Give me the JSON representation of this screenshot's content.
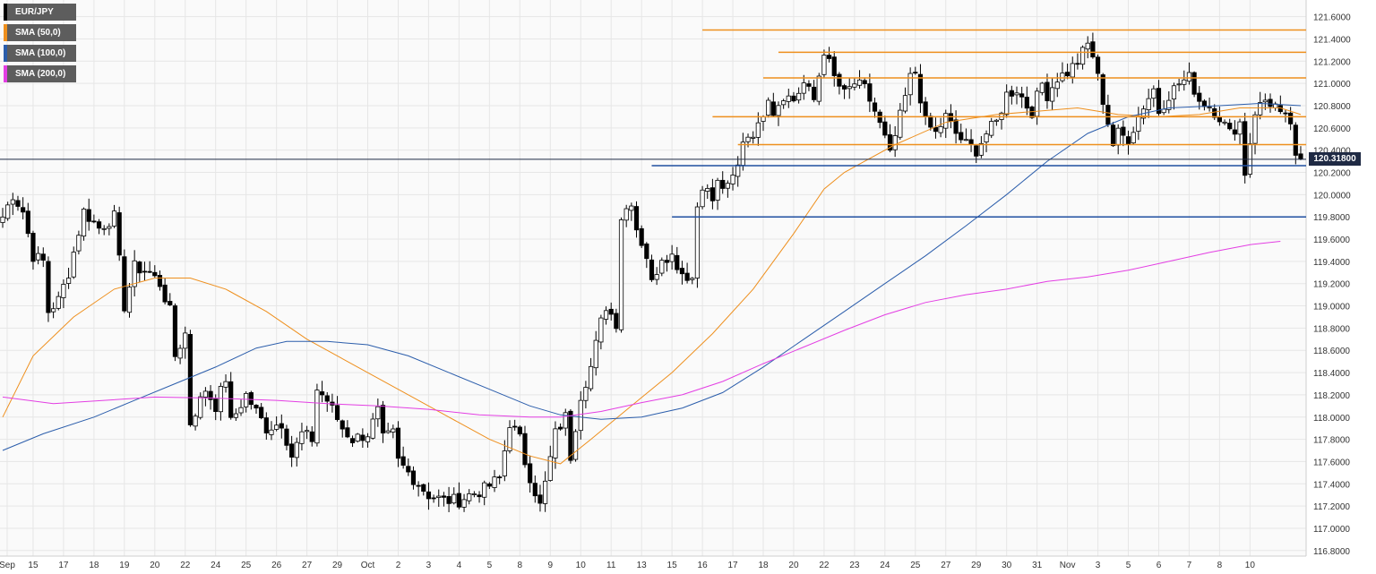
{
  "chart_data": {
    "type": "candlestick",
    "symbol": "EUR/JPY",
    "ylim": [
      116.75,
      121.75
    ],
    "y_ticks": [
      "121.6000",
      "121.4000",
      "121.2000",
      "121.0000",
      "120.8000",
      "120.6000",
      "120.4000",
      "120.2000",
      "120.0000",
      "119.8000",
      "119.6000",
      "119.4000",
      "119.2000",
      "119.0000",
      "118.8000",
      "118.6000",
      "118.4000",
      "118.2000",
      "118.0000",
      "117.8000",
      "117.6000",
      "117.4000",
      "117.2000",
      "117.0000",
      "116.8000"
    ],
    "x_ticks": [
      {
        "label": "Sep",
        "i": 0
      },
      {
        "label": "15",
        "i": 6
      },
      {
        "label": "17",
        "i": 12
      },
      {
        "label": "18",
        "i": 18
      },
      {
        "label": "19",
        "i": 24
      },
      {
        "label": "20",
        "i": 30
      },
      {
        "label": "22",
        "i": 36
      },
      {
        "label": "24",
        "i": 42
      },
      {
        "label": "25",
        "i": 48
      },
      {
        "label": "26",
        "i": 54
      },
      {
        "label": "27",
        "i": 60
      },
      {
        "label": "29",
        "i": 66
      },
      {
        "label": "Oct",
        "i": 72
      },
      {
        "label": "2",
        "i": 78
      },
      {
        "label": "3",
        "i": 84
      },
      {
        "label": "4",
        "i": 90
      },
      {
        "label": "5",
        "i": 96
      },
      {
        "label": "8",
        "i": 102
      },
      {
        "label": "9",
        "i": 108
      },
      {
        "label": "10",
        "i": 114
      },
      {
        "label": "11",
        "i": 120
      },
      {
        "label": "13",
        "i": 126
      },
      {
        "label": "15",
        "i": 132
      },
      {
        "label": "16",
        "i": 138
      },
      {
        "label": "17",
        "i": 144
      },
      {
        "label": "18",
        "i": 150
      },
      {
        "label": "20",
        "i": 156
      },
      {
        "label": "22",
        "i": 162
      },
      {
        "label": "23",
        "i": 168
      },
      {
        "label": "24",
        "i": 174
      },
      {
        "label": "25",
        "i": 180
      },
      {
        "label": "27",
        "i": 186
      },
      {
        "label": "29",
        "i": 192
      },
      {
        "label": "30",
        "i": 198
      },
      {
        "label": "31",
        "i": 204
      },
      {
        "label": "Nov",
        "i": 210
      },
      {
        "label": "3",
        "i": 216
      },
      {
        "label": "5",
        "i": 222
      },
      {
        "label": "6",
        "i": 228
      },
      {
        "label": "7",
        "i": 234
      },
      {
        "label": "8",
        "i": 240
      },
      {
        "label": "10",
        "i": 246
      }
    ],
    "anchors": [
      [
        0,
        119.8
      ],
      [
        2,
        120.0
      ],
      [
        4,
        119.85
      ],
      [
        6,
        119.45
      ],
      [
        8,
        119.4
      ],
      [
        9,
        118.95
      ],
      [
        11,
        119.05
      ],
      [
        13,
        119.3
      ],
      [
        16,
        119.85
      ],
      [
        19,
        119.7
      ],
      [
        22,
        119.8
      ],
      [
        24,
        119.0
      ],
      [
        26,
        119.35
      ],
      [
        29,
        119.3
      ],
      [
        31,
        119.2
      ],
      [
        33,
        118.95
      ],
      [
        34,
        118.55
      ],
      [
        36,
        118.75
      ],
      [
        37,
        117.95
      ],
      [
        38,
        118.05
      ],
      [
        40,
        118.25
      ],
      [
        42,
        118.1
      ],
      [
        44,
        118.35
      ],
      [
        45,
        117.95
      ],
      [
        48,
        118.2
      ],
      [
        52,
        117.9
      ],
      [
        55,
        117.95
      ],
      [
        57,
        117.65
      ],
      [
        59,
        117.85
      ],
      [
        61,
        117.8
      ],
      [
        62,
        118.25
      ],
      [
        64,
        118.15
      ],
      [
        67,
        117.9
      ],
      [
        69,
        117.8
      ],
      [
        72,
        117.85
      ],
      [
        74,
        118.05
      ],
      [
        75,
        117.8
      ],
      [
        77,
        117.85
      ],
      [
        78,
        117.6
      ],
      [
        81,
        117.45
      ],
      [
        84,
        117.3
      ],
      [
        87,
        117.25
      ],
      [
        90,
        117.25
      ],
      [
        92,
        117.3
      ],
      [
        95,
        117.35
      ],
      [
        98,
        117.45
      ],
      [
        100,
        117.95
      ],
      [
        102,
        117.8
      ],
      [
        103,
        117.6
      ],
      [
        106,
        117.2
      ],
      [
        107,
        117.4
      ],
      [
        109,
        117.85
      ],
      [
        111,
        118.0
      ],
      [
        112,
        117.65
      ],
      [
        114,
        118.2
      ],
      [
        116,
        118.45
      ],
      [
        118,
        118.85
      ],
      [
        119,
        119.0
      ],
      [
        121,
        118.85
      ],
      [
        122,
        119.8
      ],
      [
        124,
        119.95
      ],
      [
        125,
        119.7
      ],
      [
        127,
        119.45
      ],
      [
        128,
        119.2
      ],
      [
        130,
        119.45
      ],
      [
        132,
        119.45
      ],
      [
        134,
        119.3
      ],
      [
        136,
        119.25
      ],
      [
        137,
        119.9
      ],
      [
        138,
        120.1
      ],
      [
        140,
        119.95
      ],
      [
        141,
        120.1
      ],
      [
        143,
        120.05
      ],
      [
        145,
        120.25
      ],
      [
        146,
        120.5
      ],
      [
        149,
        120.6
      ],
      [
        151,
        120.9
      ],
      [
        152,
        120.75
      ],
      [
        154,
        120.9
      ],
      [
        156,
        120.85
      ],
      [
        158,
        121.0
      ],
      [
        160,
        120.85
      ],
      [
        162,
        121.3
      ],
      [
        164,
        121.05
      ],
      [
        166,
        120.9
      ],
      [
        168,
        121.0
      ],
      [
        170,
        120.95
      ],
      [
        172,
        120.75
      ],
      [
        174,
        120.5
      ],
      [
        175,
        120.35
      ],
      [
        177,
        120.7
      ],
      [
        179,
        121.05
      ],
      [
        180,
        121.1
      ],
      [
        182,
        120.65
      ],
      [
        184,
        120.55
      ],
      [
        186,
        120.7
      ],
      [
        188,
        120.55
      ],
      [
        190,
        120.45
      ],
      [
        192,
        120.4
      ],
      [
        194,
        120.55
      ],
      [
        196,
        120.65
      ],
      [
        198,
        120.9
      ],
      [
        200,
        120.95
      ],
      [
        202,
        120.8
      ],
      [
        203,
        120.75
      ],
      [
        205,
        121.0
      ],
      [
        206,
        120.9
      ],
      [
        208,
        121.05
      ],
      [
        210,
        121.1
      ],
      [
        212,
        121.2
      ],
      [
        214,
        121.35
      ],
      [
        215,
        121.25
      ],
      [
        217,
        120.85
      ],
      [
        219,
        120.45
      ],
      [
        220,
        120.55
      ],
      [
        222,
        120.5
      ],
      [
        223,
        120.6
      ],
      [
        225,
        120.8
      ],
      [
        227,
        120.95
      ],
      [
        228,
        120.75
      ],
      [
        230,
        120.9
      ],
      [
        232,
        121.0
      ],
      [
        234,
        121.05
      ],
      [
        236,
        120.85
      ],
      [
        238,
        120.8
      ],
      [
        240,
        120.7
      ],
      [
        242,
        120.55
      ],
      [
        244,
        120.65
      ],
      [
        245,
        120.2
      ],
      [
        247,
        120.75
      ],
      [
        249,
        120.85
      ],
      [
        251,
        120.8
      ],
      [
        252,
        120.7
      ],
      [
        254,
        120.65
      ],
      [
        255,
        120.3
      ],
      [
        256,
        120.32
      ]
    ],
    "series": [
      {
        "name": "SMA (50,0)",
        "color": "#ee8f1d",
        "pts": [
          [
            0,
            118.0
          ],
          [
            6,
            118.55
          ],
          [
            14,
            118.9
          ],
          [
            22,
            119.15
          ],
          [
            30,
            119.25
          ],
          [
            37,
            119.25
          ],
          [
            44,
            119.15
          ],
          [
            52,
            118.95
          ],
          [
            60,
            118.7
          ],
          [
            70,
            118.45
          ],
          [
            80,
            118.2
          ],
          [
            88,
            118.0
          ],
          [
            96,
            117.8
          ],
          [
            104,
            117.65
          ],
          [
            110,
            117.58
          ],
          [
            116,
            117.8
          ],
          [
            124,
            118.1
          ],
          [
            132,
            118.4
          ],
          [
            140,
            118.75
          ],
          [
            148,
            119.15
          ],
          [
            156,
            119.65
          ],
          [
            162,
            120.05
          ],
          [
            166,
            120.2
          ],
          [
            170,
            120.3
          ],
          [
            176,
            120.45
          ],
          [
            186,
            120.65
          ],
          [
            196,
            120.72
          ],
          [
            204,
            120.75
          ],
          [
            212,
            120.78
          ],
          [
            220,
            120.72
          ],
          [
            228,
            120.7
          ],
          [
            236,
            120.72
          ],
          [
            244,
            120.78
          ],
          [
            252,
            120.78
          ],
          [
            256,
            120.72
          ]
        ]
      },
      {
        "name": "SMA (100,0)",
        "color": "#2b5dab",
        "pts": [
          [
            0,
            117.7
          ],
          [
            8,
            117.85
          ],
          [
            18,
            118.0
          ],
          [
            26,
            118.15
          ],
          [
            34,
            118.3
          ],
          [
            42,
            118.45
          ],
          [
            50,
            118.62
          ],
          [
            56,
            118.68
          ],
          [
            64,
            118.68
          ],
          [
            72,
            118.65
          ],
          [
            80,
            118.55
          ],
          [
            88,
            118.4
          ],
          [
            96,
            118.25
          ],
          [
            104,
            118.1
          ],
          [
            110,
            118.02
          ],
          [
            118,
            117.98
          ],
          [
            126,
            118.0
          ],
          [
            134,
            118.08
          ],
          [
            142,
            118.22
          ],
          [
            150,
            118.45
          ],
          [
            158,
            118.7
          ],
          [
            166,
            118.95
          ],
          [
            174,
            119.2
          ],
          [
            182,
            119.45
          ],
          [
            190,
            119.72
          ],
          [
            198,
            120.0
          ],
          [
            206,
            120.3
          ],
          [
            214,
            120.55
          ],
          [
            222,
            120.7
          ],
          [
            230,
            120.78
          ],
          [
            240,
            120.8
          ],
          [
            248,
            120.82
          ],
          [
            256,
            120.8
          ]
        ]
      },
      {
        "name": "SMA (200,0)",
        "color": "#e33ee3",
        "pts": [
          [
            0,
            118.18
          ],
          [
            10,
            118.12
          ],
          [
            20,
            118.15
          ],
          [
            30,
            118.18
          ],
          [
            42,
            118.17
          ],
          [
            54,
            118.15
          ],
          [
            64,
            118.12
          ],
          [
            74,
            118.1
          ],
          [
            84,
            118.07
          ],
          [
            94,
            118.02
          ],
          [
            104,
            118.0
          ],
          [
            110,
            118.0
          ],
          [
            118,
            118.05
          ],
          [
            126,
            118.13
          ],
          [
            134,
            118.2
          ],
          [
            142,
            118.32
          ],
          [
            150,
            118.48
          ],
          [
            158,
            118.63
          ],
          [
            166,
            118.78
          ],
          [
            174,
            118.92
          ],
          [
            182,
            119.03
          ],
          [
            190,
            119.1
          ],
          [
            198,
            119.15
          ],
          [
            206,
            119.22
          ],
          [
            214,
            119.26
          ],
          [
            222,
            119.32
          ],
          [
            230,
            119.4
          ],
          [
            238,
            119.48
          ],
          [
            246,
            119.55
          ],
          [
            252,
            119.58
          ]
        ]
      }
    ],
    "levels": [
      {
        "y": 121.48,
        "from": 138,
        "color": "#ee8f1d"
      },
      {
        "y": 121.28,
        "from": 153,
        "color": "#ee8f1d"
      },
      {
        "y": 121.05,
        "from": 150,
        "color": "#ee8f1d"
      },
      {
        "y": 120.7,
        "from": 140,
        "color": "#ee8f1d"
      },
      {
        "y": 120.45,
        "from": 145,
        "color": "#ee8f1d"
      },
      {
        "y": 120.26,
        "from": 128,
        "color": "#1f4fa0"
      },
      {
        "y": 119.8,
        "from": 132,
        "color": "#1f4fa0"
      }
    ],
    "current_price": 120.318,
    "current_price_label": "120.31800"
  },
  "legend": [
    {
      "label": "EUR/JPY",
      "color": "#000000"
    },
    {
      "label": "SMA (50,0)",
      "color": "#ee8f1d"
    },
    {
      "label": "SMA (100,0)",
      "color": "#2b5dab"
    },
    {
      "label": "SMA (200,0)",
      "color": "#e33ee3"
    }
  ]
}
